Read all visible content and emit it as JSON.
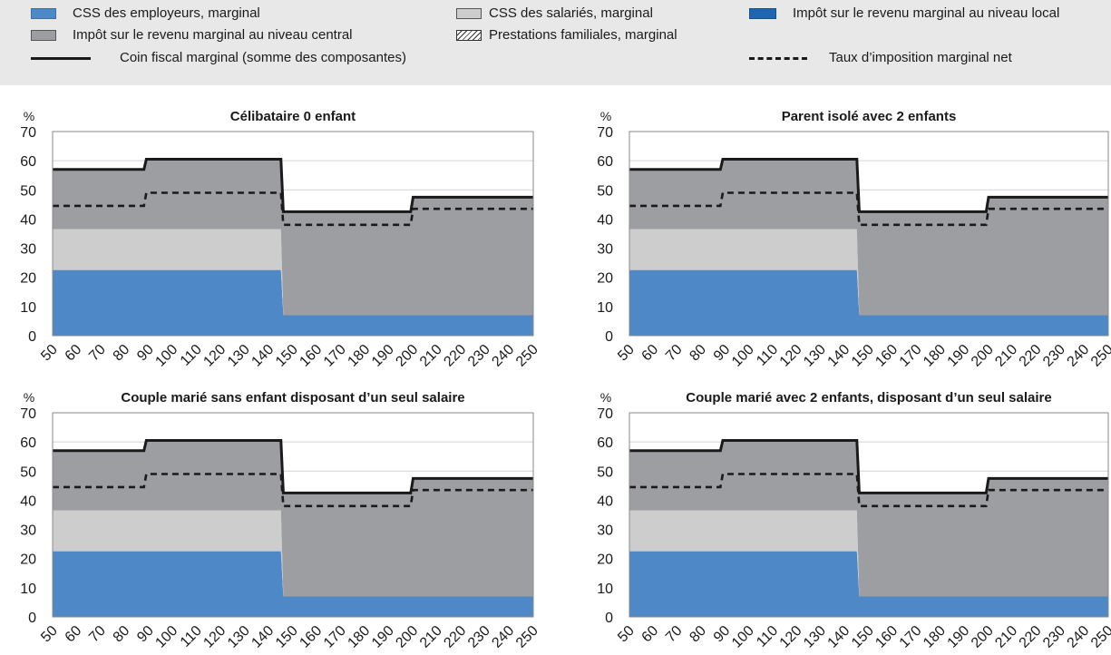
{
  "legend": {
    "employer_ssc": "CSS des employeurs, marginal",
    "employee_ssc": "CSS des salariés, marginal",
    "local_tax": "Impôt sur le revenu marginal au niveau local",
    "central_tax": "Impôt sur le revenu marginal au niveau central",
    "family_benefits": "Prestations familiales, marginal",
    "tax_wedge": "Coin fiscal marginal (somme des composantes)",
    "net_rate": "Taux d’imposition marginal net"
  },
  "colors": {
    "employer_ssc": "#4f88c6",
    "employee_ssc": "#cdcdcd",
    "central_tax": "#9d9ea2",
    "local_tax": "#1f65b0",
    "line": "#1a1a1a",
    "legend_bg": "#e8e8e8"
  },
  "chart_data": [
    {
      "type": "area",
      "title": "Célibataire 0 enfant",
      "ylabel": "%",
      "ylim": [
        0,
        70
      ],
      "yticks": [
        "0",
        "10",
        "20",
        "30",
        "40",
        "50",
        "60",
        "70"
      ],
      "xlim": [
        50,
        250
      ],
      "xticks": [
        "50",
        "60",
        "70",
        "80",
        "90",
        "100",
        "110",
        "120",
        "130",
        "140",
        "150",
        "160",
        "170",
        "180",
        "190",
        "200",
        "210",
        "220",
        "230",
        "240",
        "250"
      ],
      "grid": true,
      "x": [
        50,
        88,
        89,
        145,
        146,
        199,
        200,
        250
      ],
      "series": [
        {
          "name": "CSS des employeurs, marginal",
          "values": [
            22.5,
            22.5,
            22.5,
            22.5,
            7,
            7,
            7,
            7
          ]
        },
        {
          "name": "CSS des salariés, marginal",
          "values": [
            14,
            14,
            14,
            14,
            0,
            0,
            0,
            0
          ]
        },
        {
          "name": "Impôt sur le revenu marginal au niveau central",
          "values": [
            20.5,
            20.5,
            24,
            24,
            35.5,
            35.5,
            40.5,
            40.5
          ]
        },
        {
          "name": "Impôt sur le revenu marginal au niveau local",
          "values": [
            0,
            0,
            0,
            0,
            0,
            0,
            0,
            0
          ]
        },
        {
          "name": "Prestations familiales, marginal",
          "values": [
            0,
            0,
            0,
            0,
            0,
            0,
            0,
            0
          ]
        },
        {
          "name": "Coin fiscal marginal (somme des composantes)",
          "values": [
            57,
            57,
            60.5,
            60.5,
            42.5,
            42.5,
            47.5,
            47.5
          ]
        },
        {
          "name": "Taux d’imposition marginal net",
          "values": [
            44.5,
            44.5,
            49,
            49,
            38,
            38,
            43.5,
            43.5
          ]
        }
      ]
    },
    {
      "type": "area",
      "title": "Parent isolé avec 2 enfants",
      "ylabel": "%",
      "ylim": [
        0,
        70
      ],
      "yticks": [
        "0",
        "10",
        "20",
        "30",
        "40",
        "50",
        "60",
        "70"
      ],
      "xlim": [
        50,
        250
      ],
      "xticks": [
        "50",
        "60",
        "70",
        "80",
        "90",
        "100",
        "110",
        "120",
        "130",
        "140",
        "150",
        "160",
        "170",
        "180",
        "190",
        "200",
        "210",
        "220",
        "230",
        "240",
        "250"
      ],
      "grid": true,
      "x": [
        50,
        88,
        89,
        145,
        146,
        199,
        200,
        250
      ],
      "series": [
        {
          "name": "CSS des employeurs, marginal",
          "values": [
            22.5,
            22.5,
            22.5,
            22.5,
            7,
            7,
            7,
            7
          ]
        },
        {
          "name": "CSS des salariés, marginal",
          "values": [
            14,
            14,
            14,
            14,
            0,
            0,
            0,
            0
          ]
        },
        {
          "name": "Impôt sur le revenu marginal au niveau central",
          "values": [
            20.5,
            20.5,
            24,
            24,
            35.5,
            35.5,
            40.5,
            40.5
          ]
        },
        {
          "name": "Impôt sur le revenu marginal au niveau local",
          "values": [
            0,
            0,
            0,
            0,
            0,
            0,
            0,
            0
          ]
        },
        {
          "name": "Prestations familiales, marginal",
          "values": [
            0,
            0,
            0,
            0,
            0,
            0,
            0,
            0
          ]
        },
        {
          "name": "Coin fiscal marginal (somme des composantes)",
          "values": [
            57,
            57,
            60.5,
            60.5,
            42.5,
            42.5,
            47.5,
            47.5
          ]
        },
        {
          "name": "Taux d’imposition marginal net",
          "values": [
            44.5,
            44.5,
            49,
            49,
            38,
            38,
            43.5,
            43.5
          ]
        }
      ]
    },
    {
      "type": "area",
      "title": "Couple marié sans enfant disposant d’un seul salaire",
      "ylabel": "%",
      "ylim": [
        0,
        70
      ],
      "yticks": [
        "0",
        "10",
        "20",
        "30",
        "40",
        "50",
        "60",
        "70"
      ],
      "xlim": [
        50,
        250
      ],
      "xticks": [
        "50",
        "60",
        "70",
        "80",
        "90",
        "100",
        "110",
        "120",
        "130",
        "140",
        "150",
        "160",
        "170",
        "180",
        "190",
        "200",
        "210",
        "220",
        "230",
        "240",
        "250"
      ],
      "grid": true,
      "x": [
        50,
        88,
        89,
        145,
        146,
        199,
        200,
        250
      ],
      "series": [
        {
          "name": "CSS des employeurs, marginal",
          "values": [
            22.5,
            22.5,
            22.5,
            22.5,
            7,
            7,
            7,
            7
          ]
        },
        {
          "name": "CSS des salariés, marginal",
          "values": [
            14,
            14,
            14,
            14,
            0,
            0,
            0,
            0
          ]
        },
        {
          "name": "Impôt sur le revenu marginal au niveau central",
          "values": [
            20.5,
            20.5,
            24,
            24,
            35.5,
            35.5,
            40.5,
            40.5
          ]
        },
        {
          "name": "Impôt sur le revenu marginal au niveau local",
          "values": [
            0,
            0,
            0,
            0,
            0,
            0,
            0,
            0
          ]
        },
        {
          "name": "Prestations familiales, marginal",
          "values": [
            0,
            0,
            0,
            0,
            0,
            0,
            0,
            0
          ]
        },
        {
          "name": "Coin fiscal marginal (somme des composantes)",
          "values": [
            57,
            57,
            60.5,
            60.5,
            42.5,
            42.5,
            47.5,
            47.5
          ]
        },
        {
          "name": "Taux d’imposition marginal net",
          "values": [
            44.5,
            44.5,
            49,
            49,
            38,
            38,
            43.5,
            43.5
          ]
        }
      ]
    },
    {
      "type": "area",
      "title": "Couple marié avec 2 enfants, disposant d’un seul salaire",
      "ylabel": "%",
      "ylim": [
        0,
        70
      ],
      "yticks": [
        "0",
        "10",
        "20",
        "30",
        "40",
        "50",
        "60",
        "70"
      ],
      "xlim": [
        50,
        250
      ],
      "xticks": [
        "50",
        "60",
        "70",
        "80",
        "90",
        "100",
        "110",
        "120",
        "130",
        "140",
        "150",
        "160",
        "170",
        "180",
        "190",
        "200",
        "210",
        "220",
        "230",
        "240",
        "250"
      ],
      "grid": true,
      "x": [
        50,
        88,
        89,
        145,
        146,
        199,
        200,
        250
      ],
      "series": [
        {
          "name": "CSS des employeurs, marginal",
          "values": [
            22.5,
            22.5,
            22.5,
            22.5,
            7,
            7,
            7,
            7
          ]
        },
        {
          "name": "CSS des salariés, marginal",
          "values": [
            14,
            14,
            14,
            14,
            0,
            0,
            0,
            0
          ]
        },
        {
          "name": "Impôt sur le revenu marginal au niveau central",
          "values": [
            20.5,
            20.5,
            24,
            24,
            35.5,
            35.5,
            40.5,
            40.5
          ]
        },
        {
          "name": "Impôt sur le revenu marginal au niveau local",
          "values": [
            0,
            0,
            0,
            0,
            0,
            0,
            0,
            0
          ]
        },
        {
          "name": "Prestations familiales, marginal",
          "values": [
            0,
            0,
            0,
            0,
            0,
            0,
            0,
            0
          ]
        },
        {
          "name": "Coin fiscal marginal (somme des composantes)",
          "values": [
            57,
            57,
            60.5,
            60.5,
            42.5,
            42.5,
            47.5,
            47.5
          ]
        },
        {
          "name": "Taux d’imposition marginal net",
          "values": [
            44.5,
            44.5,
            49,
            49,
            38,
            38,
            43.5,
            43.5
          ]
        }
      ]
    }
  ]
}
